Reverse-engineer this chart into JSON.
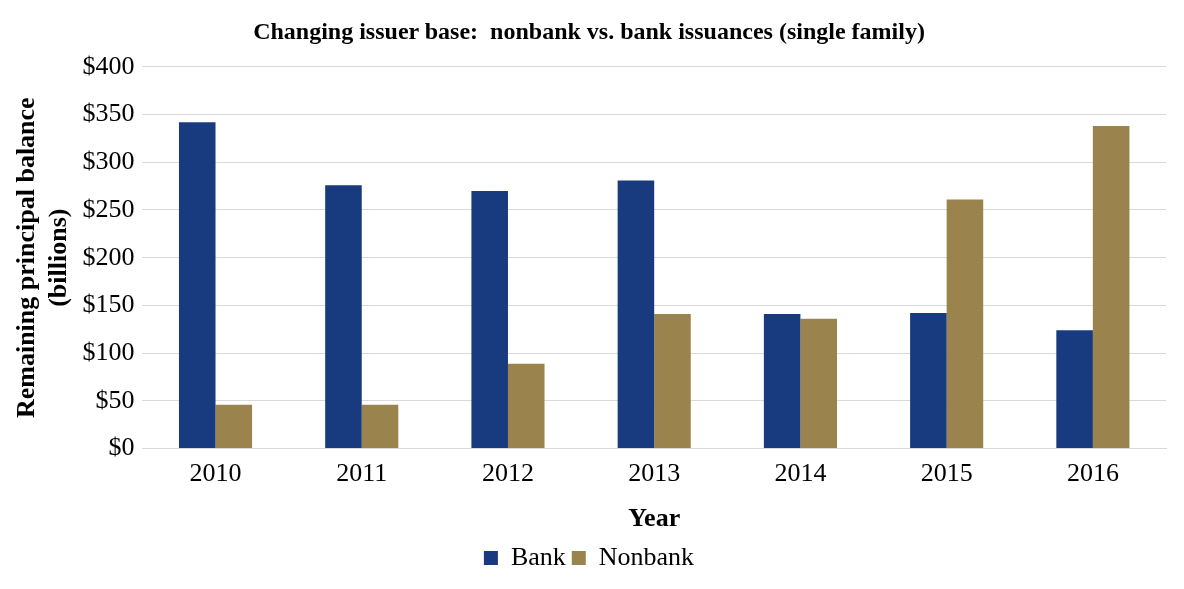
{
  "chart_data": {
    "type": "bar",
    "title": "Changing issuer base:  nonbank vs. bank issuances (single family)",
    "xlabel": "Year",
    "ylabel": "Remaining principal balance (billions)",
    "categories": [
      "2010",
      "2011",
      "2012",
      "2013",
      "2014",
      "2015",
      "2016"
    ],
    "series": [
      {
        "name": "Bank",
        "color": "#173b7e",
        "values": [
          342,
          276,
          270,
          281,
          141,
          142,
          124
        ]
      },
      {
        "name": "Nonbank",
        "color": "#9b834d",
        "values": [
          46,
          46,
          89,
          141,
          136,
          261,
          338
        ]
      }
    ],
    "ylim": [
      0,
      400
    ],
    "yticks": [
      {
        "value": 0,
        "label": "$0"
      },
      {
        "value": 50,
        "label": "$50"
      },
      {
        "value": 100,
        "label": "$100"
      },
      {
        "value": 150,
        "label": "$150"
      },
      {
        "value": 200,
        "label": "$200"
      },
      {
        "value": 250,
        "label": "$250"
      },
      {
        "value": 300,
        "label": "$300"
      },
      {
        "value": 350,
        "label": "$350"
      },
      {
        "value": 400,
        "label": "$400"
      }
    ],
    "grid": "y",
    "legend": "bottom"
  }
}
